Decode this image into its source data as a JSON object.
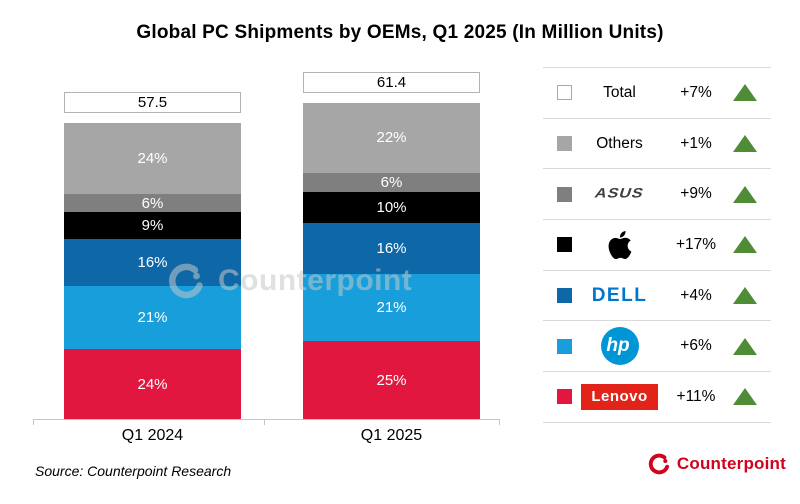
{
  "title": "Global PC Shipments by OEMs, Q1 2025 (In Million Units)",
  "source": "Source: Counterpoint Research",
  "watermark": "Counterpoint",
  "brand": {
    "name": "Counterpoint",
    "color": "#D0021C"
  },
  "chart_data": {
    "type": "bar",
    "stacked": true,
    "unit": "Million Units",
    "title": "Global PC Shipments by OEMs, Q1 2025 (In Million Units)",
    "categories": [
      "Q1 2024",
      "Q1 2025"
    ],
    "totals": [
      57.5,
      61.4
    ],
    "series": [
      {
        "name": "Lenovo",
        "color": "#E1173F",
        "values_pct": [
          24,
          25
        ]
      },
      {
        "name": "HP",
        "color": "#189FDB",
        "values_pct": [
          21,
          21
        ]
      },
      {
        "name": "Dell",
        "color": "#0E68A8",
        "values_pct": [
          16,
          16
        ]
      },
      {
        "name": "Apple",
        "color": "#000000",
        "values_pct": [
          9,
          10
        ]
      },
      {
        "name": "ASUS",
        "color": "#7F7F7F",
        "values_pct": [
          6,
          6
        ]
      },
      {
        "name": "Others",
        "color": "#A6A6A6",
        "values_pct": [
          24,
          22
        ]
      }
    ],
    "legend_position": "right",
    "grid": false,
    "ylabel": "",
    "xlabel": ""
  },
  "legend": {
    "trend_color": "#4E8C36",
    "rows": [
      {
        "label": "Total",
        "change": "+7%",
        "swatch": "#FFFFFF",
        "trend": "up"
      },
      {
        "label": "Others",
        "change": "+1%",
        "swatch": "#A6A6A6",
        "trend": "up"
      },
      {
        "label": "ASUS",
        "change": "+9%",
        "swatch": "#7F7F7F",
        "trend": "up"
      },
      {
        "label": "Apple",
        "change": "+17%",
        "swatch": "#000000",
        "trend": "up"
      },
      {
        "label": "DELL",
        "change": "+4%",
        "swatch": "#0E68A8",
        "trend": "up"
      },
      {
        "label": "hp",
        "change": "+6%",
        "swatch": "#189FDB",
        "trend": "up"
      },
      {
        "label": "Lenovo",
        "change": "+11%",
        "swatch": "#E1173F",
        "trend": "up"
      }
    ]
  }
}
